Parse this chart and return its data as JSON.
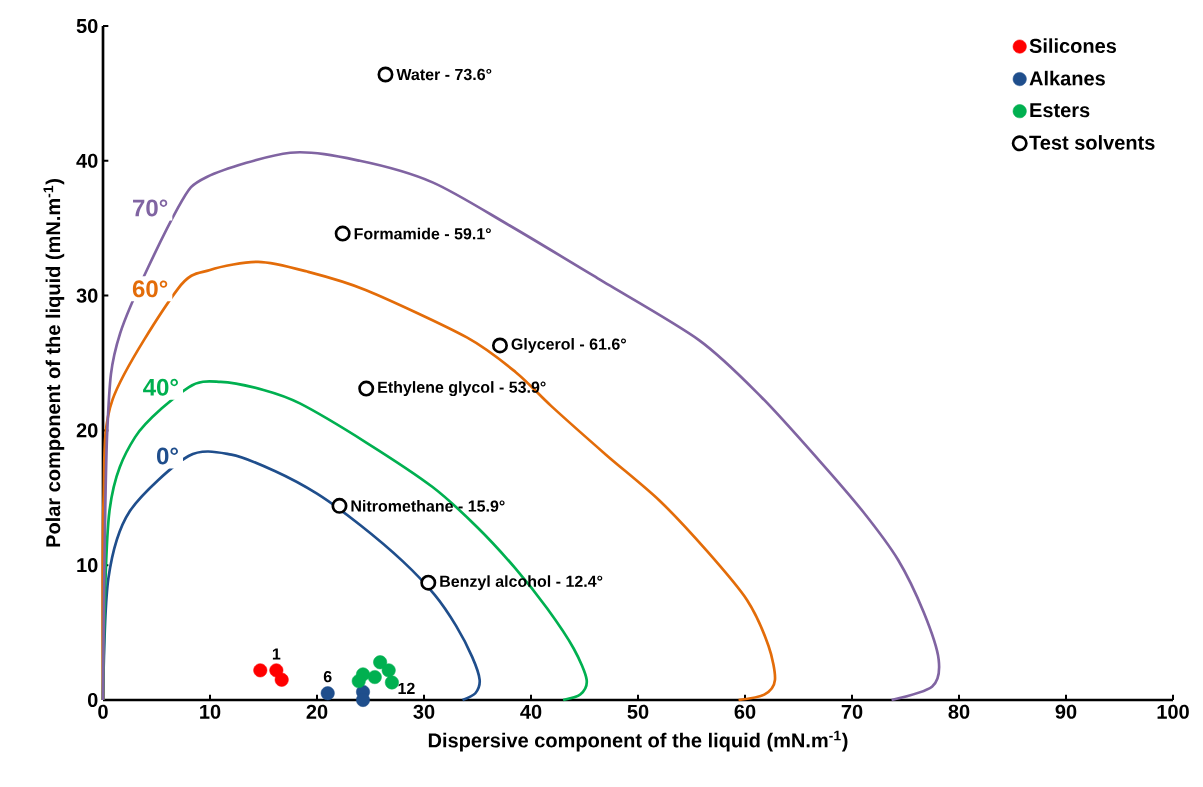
{
  "chart_data": {
    "type": "scatter",
    "xlabel": "Dispersive component of the liquid (mN.m$^{-1}$)",
    "ylabel": "Polar component of the liquid (mN.m$^{-1}$)",
    "xlim": [
      0,
      100
    ],
    "xticks": [
      0,
      10,
      20,
      30,
      40,
      50,
      60,
      70,
      80,
      90,
      100
    ],
    "ylim": [
      0,
      50
    ],
    "yticks": [
      0,
      10,
      20,
      30,
      40,
      50
    ],
    "grid": false,
    "legend": "top right",
    "series": [
      {
        "name": "0°",
        "type": "line",
        "marker": "none",
        "color": "#1f4e8c",
        "x": [
          0,
          0.5,
          2.5,
          8,
          12,
          16,
          20,
          24,
          28,
          31,
          33,
          34.5,
          35.2,
          34.8,
          33.6
        ],
        "values": [
          0,
          9,
          14,
          18.1,
          18.2,
          17,
          15.3,
          13,
          10.3,
          7.8,
          5.5,
          3.2,
          1.5,
          0.5,
          0
        ]
      },
      {
        "name": "40°",
        "type": "line",
        "marker": "none",
        "color": "#00b050",
        "x": [
          0,
          0.6,
          3,
          8,
          11,
          15,
          18.4,
          24.6,
          30.8,
          35,
          38.5,
          41.5,
          44,
          45.2,
          44.6,
          43
        ],
        "values": [
          0,
          14,
          19.5,
          23.2,
          23.6,
          23,
          22,
          19.1,
          15.8,
          12.8,
          9.8,
          6.8,
          3.8,
          1.5,
          0.4,
          0
        ]
      },
      {
        "name": "60°",
        "type": "line",
        "marker": "none",
        "color": "#e36c09",
        "x": [
          0,
          0.05,
          0.9,
          7,
          10,
          14.5,
          19,
          24.6,
          34,
          38.6,
          41.9,
          47,
          52,
          56.5,
          60.2,
          62.2,
          62.8,
          61.8,
          59.4
        ],
        "values": [
          0,
          14.8,
          22.3,
          30.5,
          31.9,
          32.5,
          31.8,
          30.4,
          26.9,
          24.3,
          21.8,
          18.2,
          14.8,
          11,
          7.4,
          4,
          1.5,
          0.4,
          0
        ]
      },
      {
        "name": "70°",
        "type": "line",
        "marker": "none",
        "color": "#8064a2",
        "x": [
          0,
          0.4,
          1.6,
          7,
          9.7,
          17.5,
          24,
          30.8,
          38,
          46.4,
          55.7,
          61.5,
          66.9,
          71,
          74.3,
          76.7,
          78.1,
          77.5,
          73.7
        ],
        "values": [
          0,
          20,
          27.2,
          36.5,
          38.8,
          40.6,
          40,
          38.4,
          35.2,
          31.2,
          26.7,
          22.5,
          17.8,
          14,
          10.4,
          6.5,
          3,
          1,
          0
        ]
      },
      {
        "name": "Silicones",
        "marker": "circle",
        "color": "#ff0000",
        "x": [
          14.7,
          16.2,
          16.7
        ],
        "values": [
          2.2,
          2.2,
          1.5
        ]
      },
      {
        "name": "Alkanes",
        "marker": "circle",
        "color": "#1f4e8c",
        "x": [
          21.0,
          24.3,
          24.3
        ],
        "values": [
          0.5,
          0.6,
          0.0
        ]
      },
      {
        "name": "Esters",
        "marker": "circle",
        "color": "#00b050",
        "x": [
          24.3,
          23.9,
          25.4,
          25.9,
          26.7,
          27.0
        ],
        "values": [
          1.9,
          1.4,
          1.7,
          2.8,
          2.2,
          1.3
        ]
      },
      {
        "name": "Test solvents",
        "marker": "circle",
        "color": "#000000",
        "x": [
          26.4,
          22.4,
          37.1,
          24.6,
          22.1,
          30.4
        ],
        "values": [
          46.4,
          34.6,
          26.3,
          23.1,
          14.4,
          8.7
        ]
      }
    ],
    "annotations": [
      {
        "text": "Water - 73.6°",
        "x": 26.4,
        "y": 46.4
      },
      {
        "text": "Formamide - 59.1°",
        "x": 22.4,
        "y": 34.6
      },
      {
        "text": "Glycerol - 61.6°",
        "x": 37.1,
        "y": 26.3
      },
      {
        "text": "Ethylene glycol - 53.9°",
        "x": 24.6,
        "y": 23.1
      },
      {
        "text": "Nitromethane - 15.9°",
        "x": 22.1,
        "y": 14.4
      },
      {
        "text": "Benzyl alcohol - 12.4°",
        "x": 30.4,
        "y": 8.7
      },
      {
        "text": "1",
        "x": 16.2,
        "y": 2.2
      },
      {
        "text": "6",
        "x": 21.0,
        "y": 0.5
      },
      {
        "text": "12",
        "x": 27.0,
        "y": 1.3
      }
    ]
  }
}
